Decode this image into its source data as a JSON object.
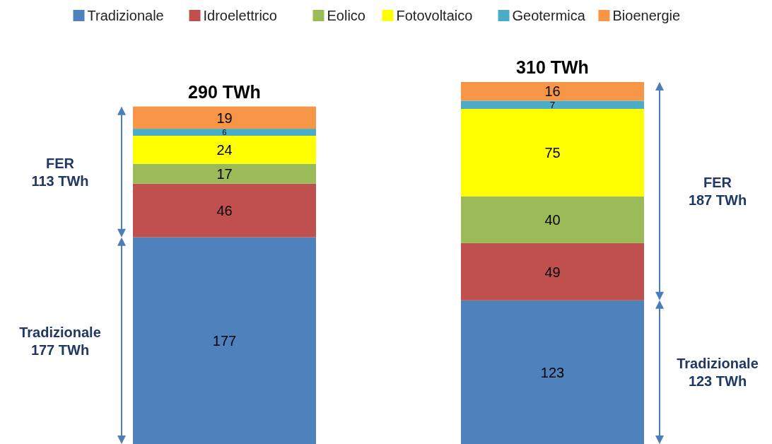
{
  "chart_data": {
    "type": "bar",
    "stacked": true,
    "categories": [
      null,
      null
    ],
    "legend": "top",
    "data_labels": true,
    "totals": [
      "290 TWh",
      "310 TWh"
    ],
    "series": [
      {
        "name": "Tradizionale",
        "color": "#4f81bd",
        "values": [
          177,
          123
        ]
      },
      {
        "name": "Idroelettrico",
        "color": "#c0504d",
        "values": [
          46,
          49
        ]
      },
      {
        "name": "Eolico",
        "color": "#9bbb59",
        "values": [
          17,
          40
        ]
      },
      {
        "name": "Fotovoltaico",
        "color": "#ffff00",
        "values": [
          24,
          75
        ]
      },
      {
        "name": "Geotermica",
        "color": "#4bacc6",
        "values": [
          6,
          7
        ]
      },
      {
        "name": "Bioenergie",
        "color": "#f79646",
        "values": [
          19,
          16
        ]
      }
    ],
    "annotations": [
      "FER\n113 TWh",
      "Tradizionale\n177 TWh",
      "FER\n187 TWh",
      "Tradizionale\n123 TWh"
    ]
  }
}
